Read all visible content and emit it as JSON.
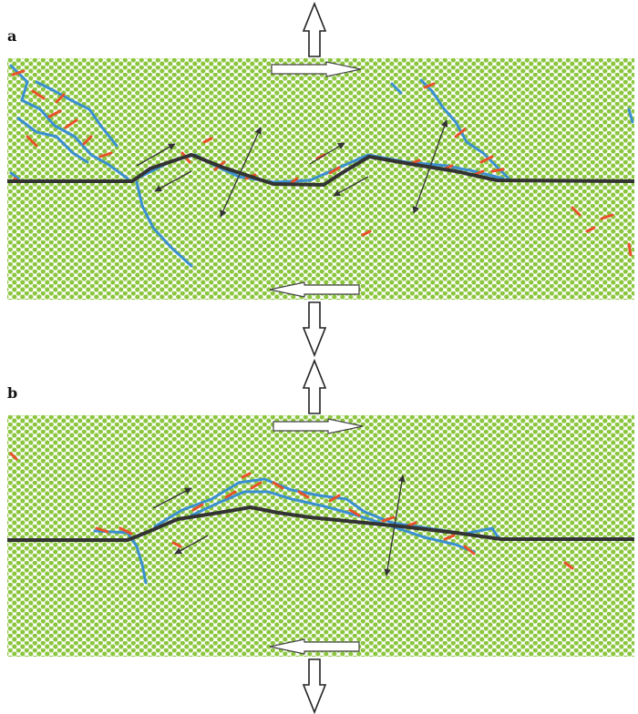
{
  "panels": [
    {
      "label": "a"
    },
    {
      "label": "b"
    }
  ],
  "colors": {
    "background": "#ffffff",
    "grain": "#8cc63f",
    "pore": "#ffffff",
    "fault_line": "#333333",
    "crack_blue": "#3b8fd1",
    "crack_red": "#e8502a",
    "arrow": "#333333"
  },
  "legend_icons": [
    "tension-arrow-icon",
    "shear-arrow-icon",
    "displacement-arrow-icon"
  ]
}
